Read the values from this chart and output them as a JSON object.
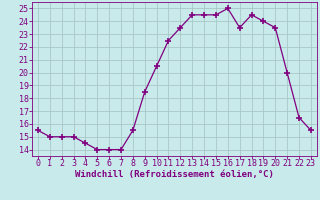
{
  "x": [
    0,
    1,
    2,
    3,
    4,
    5,
    6,
    7,
    8,
    9,
    10,
    11,
    12,
    13,
    14,
    15,
    16,
    17,
    18,
    19,
    20,
    21,
    22,
    23
  ],
  "y": [
    15.5,
    15.0,
    15.0,
    15.0,
    14.5,
    14.0,
    14.0,
    14.0,
    15.5,
    18.5,
    20.5,
    22.5,
    23.5,
    24.5,
    24.5,
    24.5,
    25.0,
    23.5,
    24.5,
    24.0,
    23.5,
    20.0,
    16.5,
    15.5
  ],
  "line_color": "#800080",
  "marker": "+",
  "marker_size": 4,
  "marker_linewidth": 1.2,
  "background_color": "#c8eaea",
  "grid_color": "#a8c8c8",
  "xlabel": "Windchill (Refroidissement éolien,°C)",
  "xlabel_color": "#800080",
  "xlabel_fontsize": 6.5,
  "tick_label_color": "#800080",
  "tick_fontsize": 6,
  "ylim": [
    13.5,
    25.5
  ],
  "yticks": [
    14,
    15,
    16,
    17,
    18,
    19,
    20,
    21,
    22,
    23,
    24,
    25
  ],
  "xticks": [
    0,
    1,
    2,
    3,
    4,
    5,
    6,
    7,
    8,
    9,
    10,
    11,
    12,
    13,
    14,
    15,
    16,
    17,
    18,
    19,
    20,
    21,
    22,
    23
  ],
  "linewidth": 0.9
}
